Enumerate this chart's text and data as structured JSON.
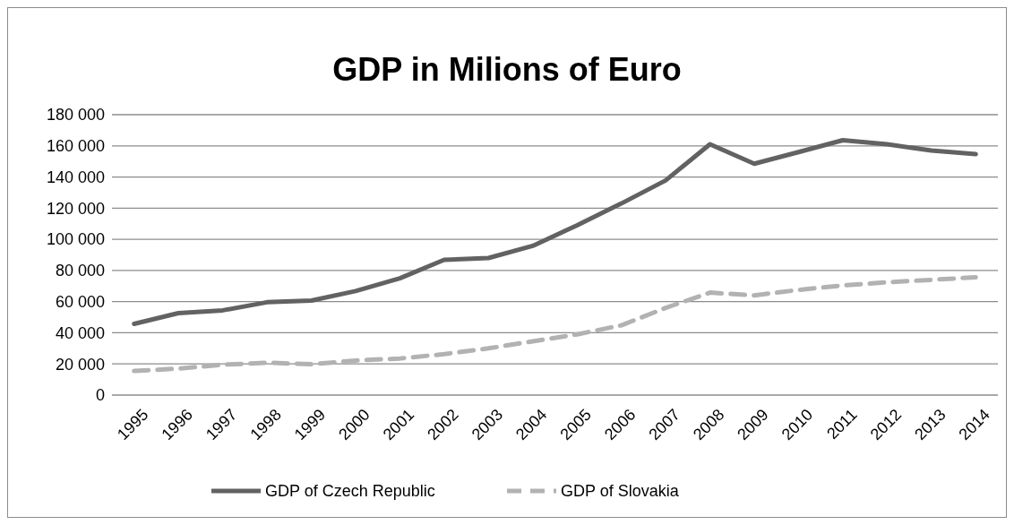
{
  "chart_data": {
    "type": "line",
    "title": "GDP in Milions of Euro",
    "categories": [
      "1995",
      "1996",
      "1997",
      "1998",
      "1999",
      "2000",
      "2001",
      "2002",
      "2003",
      "2004",
      "2005",
      "2006",
      "2007",
      "2008",
      "2009",
      "2010",
      "2011",
      "2012",
      "2013",
      "2014"
    ],
    "series": [
      {
        "name": "GDP of Czech Republic",
        "color": "#626262",
        "line_style": "solid",
        "values": [
          45700,
          52600,
          54400,
          59600,
          60700,
          66800,
          75000,
          86800,
          88000,
          95800,
          109000,
          123000,
          137800,
          161000,
          148500,
          156000,
          163600,
          161000,
          157000,
          154700
        ]
      },
      {
        "name": "GDP of Slovakia",
        "color": "#b2b2b2",
        "line_style": "dashed",
        "values": [
          15500,
          17000,
          19500,
          20800,
          19800,
          22200,
          23500,
          26300,
          30000,
          34500,
          39000,
          44800,
          56000,
          65800,
          64000,
          67500,
          70400,
          72400,
          74000,
          75600
        ]
      }
    ],
    "ylim": [
      0,
      180000
    ],
    "yticks": [
      {
        "value": 0,
        "label": "0"
      },
      {
        "value": 20000,
        "label": "20 000"
      },
      {
        "value": 40000,
        "label": "40 000"
      },
      {
        "value": 60000,
        "label": "60 000"
      },
      {
        "value": 80000,
        "label": "80 000"
      },
      {
        "value": 100000,
        "label": "100 000"
      },
      {
        "value": 120000,
        "label": "120 000"
      },
      {
        "value": 140000,
        "label": "140 000"
      },
      {
        "value": 160000,
        "label": "160 000"
      },
      {
        "value": 180000,
        "label": "180 000"
      }
    ],
    "grid": "y",
    "legend": "bottom"
  }
}
